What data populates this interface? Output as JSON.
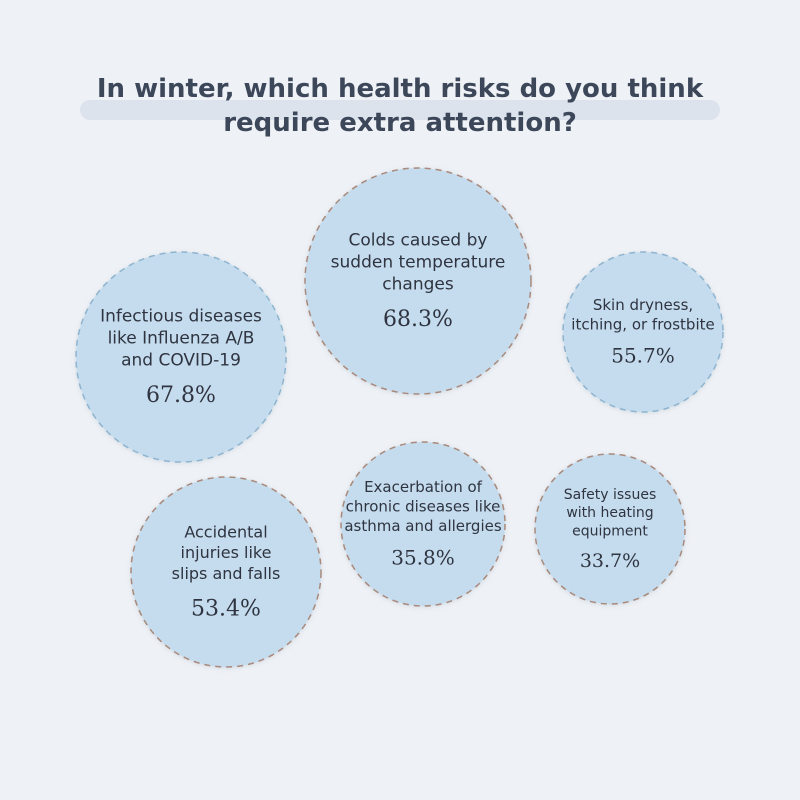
{
  "title": "In winter, which health risks do you think require extra attention?",
  "colors": {
    "background": "#eef1f5",
    "bubble_fill": "#c4dcee",
    "bubble_border_dashed": "#a98a7c",
    "bubble_border_dashed_alt": "#8fb4cf",
    "text": "#2f3440",
    "title_text": "#3c475a"
  },
  "chart_data": {
    "type": "bubble",
    "title": "In winter, which health risks do you think require extra attention?",
    "unit": "%",
    "items": [
      {
        "label": "Colds caused by sudden temperature changes",
        "label_lines": [
          "Colds caused by",
          "sudden temperature",
          "changes"
        ],
        "value": 68.3,
        "value_text": "68.3%"
      },
      {
        "label": "Infectious diseases like Influenza A/B and COVID-19",
        "label_lines": [
          "Infectious diseases",
          "like Influenza A/B",
          "and COVID-19"
        ],
        "value": 67.8,
        "value_text": "67.8%"
      },
      {
        "label": "Skin dryness, itching, or frostbite",
        "label_lines": [
          "Skin dryness,",
          "itching, or frostbite"
        ],
        "value": 55.7,
        "value_text": "55.7%"
      },
      {
        "label": "Accidental injuries like slips and falls",
        "label_lines": [
          "Accidental",
          "injuries like",
          "slips and falls"
        ],
        "value": 53.4,
        "value_text": "53.4%"
      },
      {
        "label": "Exacerbation of chronic diseases like asthma and allergies",
        "label_lines": [
          "Exacerbation of",
          "chronic diseases like",
          "asthma and allergies"
        ],
        "value": 35.8,
        "value_text": "35.8%"
      },
      {
        "label": "Safety issues with heating equipment",
        "label_lines": [
          "Safety issues",
          "with heating",
          "equipment"
        ],
        "value": 33.7,
        "value_text": "33.7%"
      }
    ]
  }
}
